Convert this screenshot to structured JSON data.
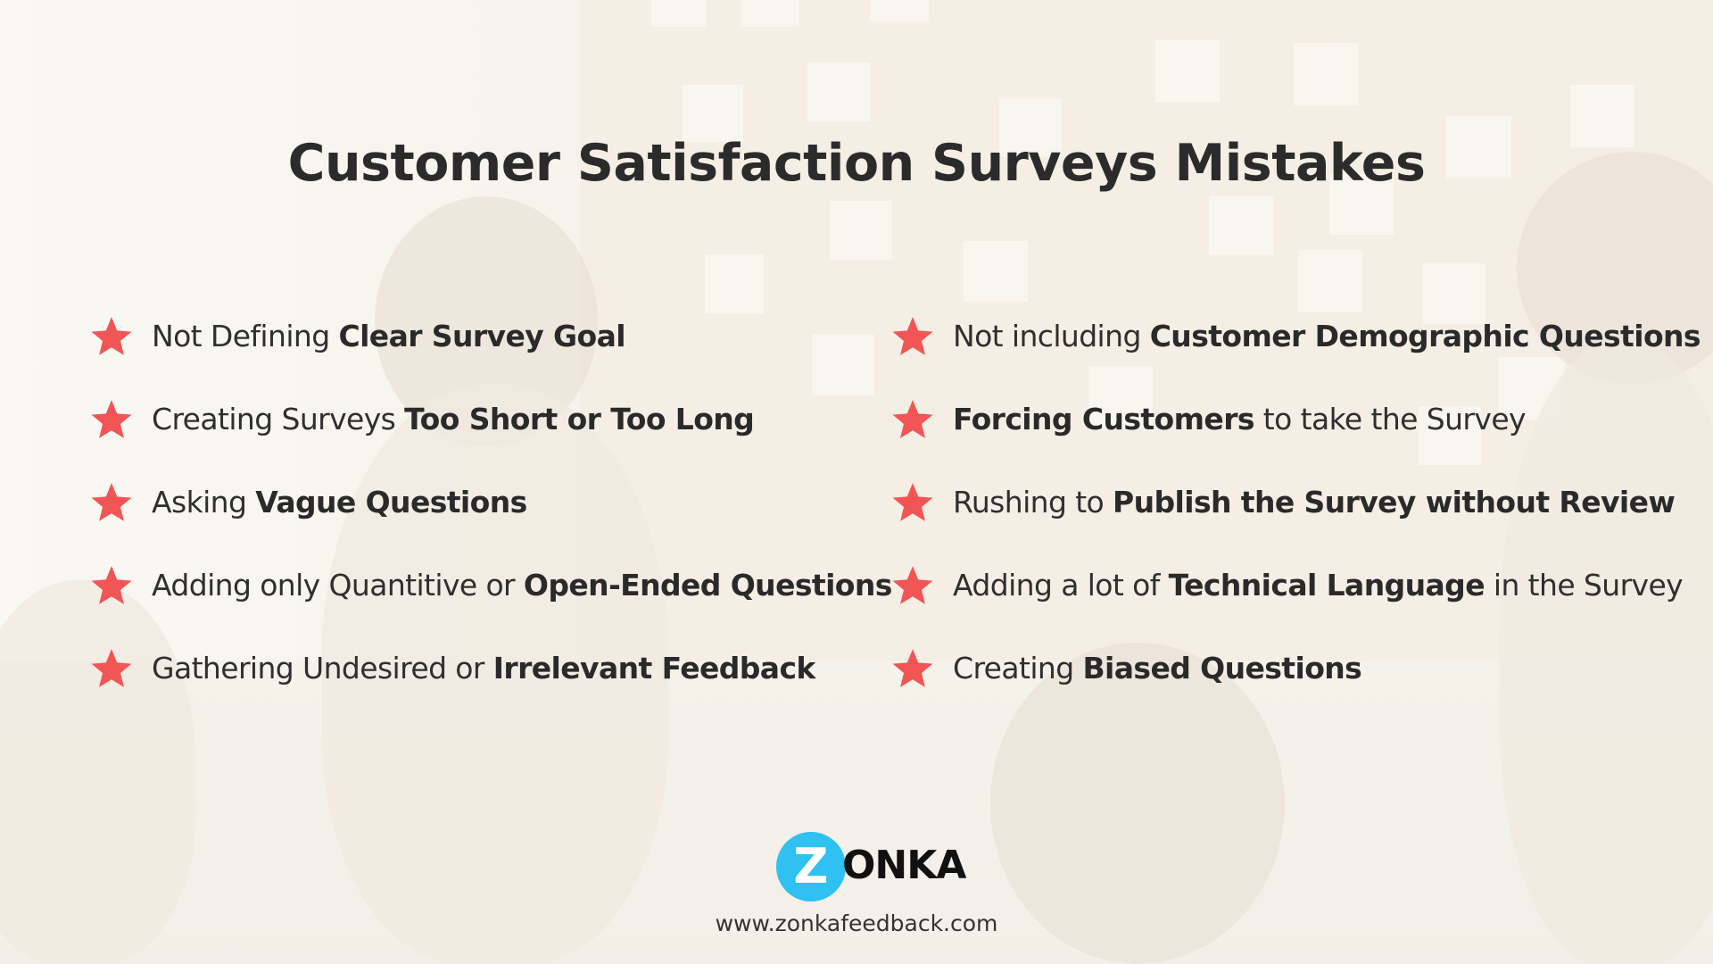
{
  "title": "Customer Satisfaction Surveys Mistakes",
  "colors": {
    "star": "#f25555",
    "text": "#2f2f2f",
    "logo_blue": "#2ec1f2",
    "logo_black": "#111111"
  },
  "icons": {
    "bullet": "star-icon"
  },
  "left_items": [
    {
      "prefix": "Not Defining ",
      "bold": "Clear Survey Goal",
      "suffix": ""
    },
    {
      "prefix": "Creating Surveys ",
      "bold": "Too Short or Too Long",
      "suffix": ""
    },
    {
      "prefix": "Asking ",
      "bold": "Vague Questions",
      "suffix": ""
    },
    {
      "prefix": "Adding only Quantitive or ",
      "bold": "Open-Ended Questions",
      "suffix": ""
    },
    {
      "prefix": "Gathering Undesired or ",
      "bold": "Irrelevant Feedback",
      "suffix": ""
    }
  ],
  "right_items": [
    {
      "prefix": "Not including ",
      "bold": "Customer Demographic Questions",
      "suffix": ""
    },
    {
      "prefix": "",
      "bold": "Forcing Customers",
      "suffix": " to take the Survey"
    },
    {
      "prefix": "Rushing to ",
      "bold": "Publish the Survey without Review",
      "suffix": ""
    },
    {
      "prefix": "Adding a lot of ",
      "bold": "Technical Language",
      "suffix": " in the Survey"
    },
    {
      "prefix": "Creating ",
      "bold": "Biased Questions",
      "suffix": ""
    }
  ],
  "logo": {
    "initial": "Z",
    "rest": "ONKA"
  },
  "website": "www.zonkafeedback.com"
}
